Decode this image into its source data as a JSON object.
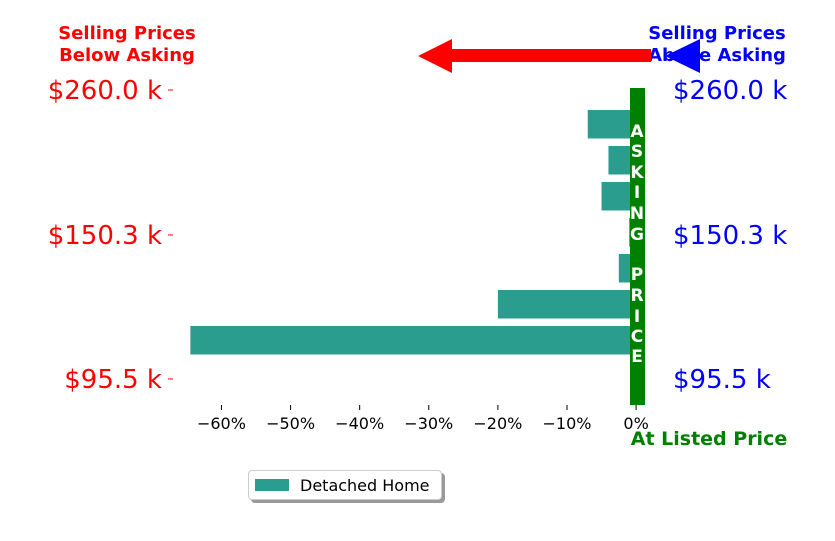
{
  "chart_data": {
    "type": "bar",
    "orientation": "horizontal",
    "series": [
      {
        "name": "Detached Home",
        "color": "#2a9d8f",
        "values": [
          -7,
          -4,
          -5,
          -1,
          -2.5,
          -20,
          -64.5
        ]
      }
    ],
    "xlim": [
      -66,
      1
    ],
    "x_ticks": [
      -60,
      -50,
      -40,
      -30,
      -20,
      -10,
      0
    ],
    "x_tick_labels": [
      "−60%",
      "−50%",
      "−40%",
      "−30%",
      "−20%",
      "−10%",
      "0%"
    ],
    "y_tick_labels": [
      "$260.0 k",
      "$150.3 k",
      "$95.5 k"
    ],
    "left_header": "Selling Prices\nBelow Asking",
    "right_header": "Selling Prices\nAbove Asking",
    "asking_label": "ASKING PRICE",
    "bottom_label": "At Listed Price",
    "colors": {
      "below": "#ff0000",
      "above": "#0000ff",
      "asking": "#008000",
      "bar": "#2a9d8f"
    },
    "legend_position": "bottom-center"
  }
}
